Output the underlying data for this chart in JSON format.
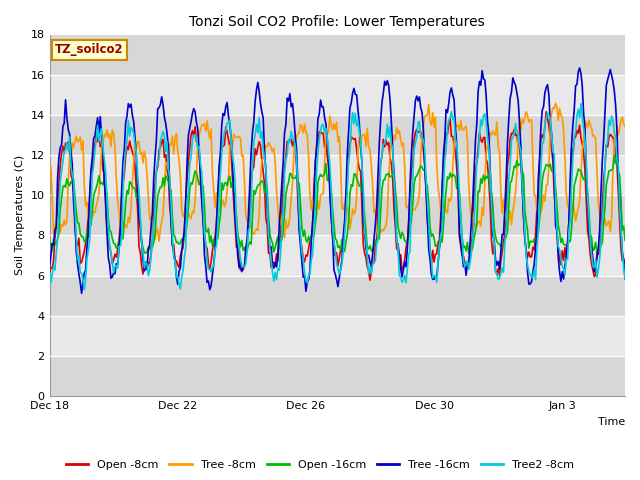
{
  "title": "Tonzi Soil CO2 Profile: Lower Temperatures",
  "xlabel": "Time",
  "ylabel": "Soil Temperatures (C)",
  "ylim": [
    0,
    18
  ],
  "yticks": [
    0,
    2,
    4,
    6,
    8,
    10,
    12,
    14,
    16,
    18
  ],
  "label_box": "TZ_soilco2",
  "fig_bg": "#ffffff",
  "plot_bg": "#e8e8e8",
  "band_color": "#d0d0d0",
  "series": {
    "Open_8cm": {
      "color": "#dd0000",
      "label": "Open -8cm",
      "lw": 1.2
    },
    "Tree_8cm": {
      "color": "#ff9900",
      "label": "Tree -8cm",
      "lw": 1.2
    },
    "Open_16cm": {
      "color": "#00bb00",
      "label": "Open -16cm",
      "lw": 1.2
    },
    "Tree_16cm": {
      "color": "#0000cc",
      "label": "Tree -16cm",
      "lw": 1.2
    },
    "Tree2_8cm": {
      "color": "#00ccdd",
      "label": "Tree2 -8cm",
      "lw": 1.2
    }
  },
  "xtick_labels": [
    "Dec 18",
    "Dec 22",
    "Dec 26",
    "Dec 30",
    "Jan 3"
  ],
  "xtick_positions": [
    0,
    96,
    192,
    288,
    384
  ],
  "total_points": 432
}
